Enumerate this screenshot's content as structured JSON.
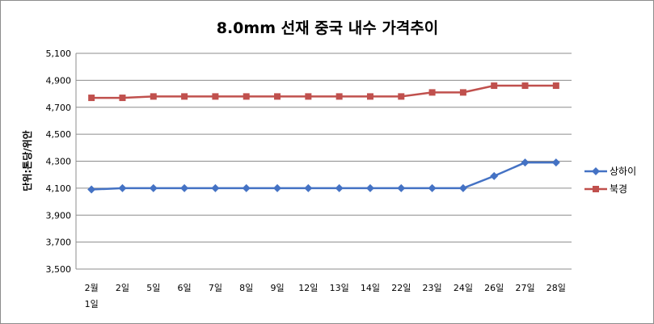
{
  "chart_data": {
    "type": "line",
    "title": "8.0mm 선재 중국 내수 가격추이",
    "ylabel": "단위:톤당/위안",
    "xlabel": "",
    "categories": [
      "2월 1일",
      "2일",
      "5일",
      "6일",
      "7일",
      "8일",
      "9일",
      "12일",
      "13일",
      "14일",
      "22일",
      "23일",
      "24일",
      "26일",
      "27일",
      "28일"
    ],
    "ylim": [
      3500,
      5100
    ],
    "yticks": [
      "3,500",
      "3,700",
      "3,900",
      "4,100",
      "4,300",
      "4,500",
      "4,700",
      "4,900",
      "5,100"
    ],
    "grid": true,
    "legend": "right",
    "series": [
      {
        "name": "상하이",
        "color": "#4472c4",
        "marker": "diamond",
        "values": [
          4090,
          4100,
          4100,
          4100,
          4100,
          4100,
          4100,
          4100,
          4100,
          4100,
          4100,
          4100,
          4100,
          4190,
          4290,
          4290
        ]
      },
      {
        "name": "북경",
        "color": "#c0504d",
        "marker": "square",
        "values": [
          4770,
          4770,
          4780,
          4780,
          4780,
          4780,
          4780,
          4780,
          4780,
          4780,
          4780,
          4810,
          4810,
          4860,
          4860,
          4860
        ]
      }
    ]
  }
}
